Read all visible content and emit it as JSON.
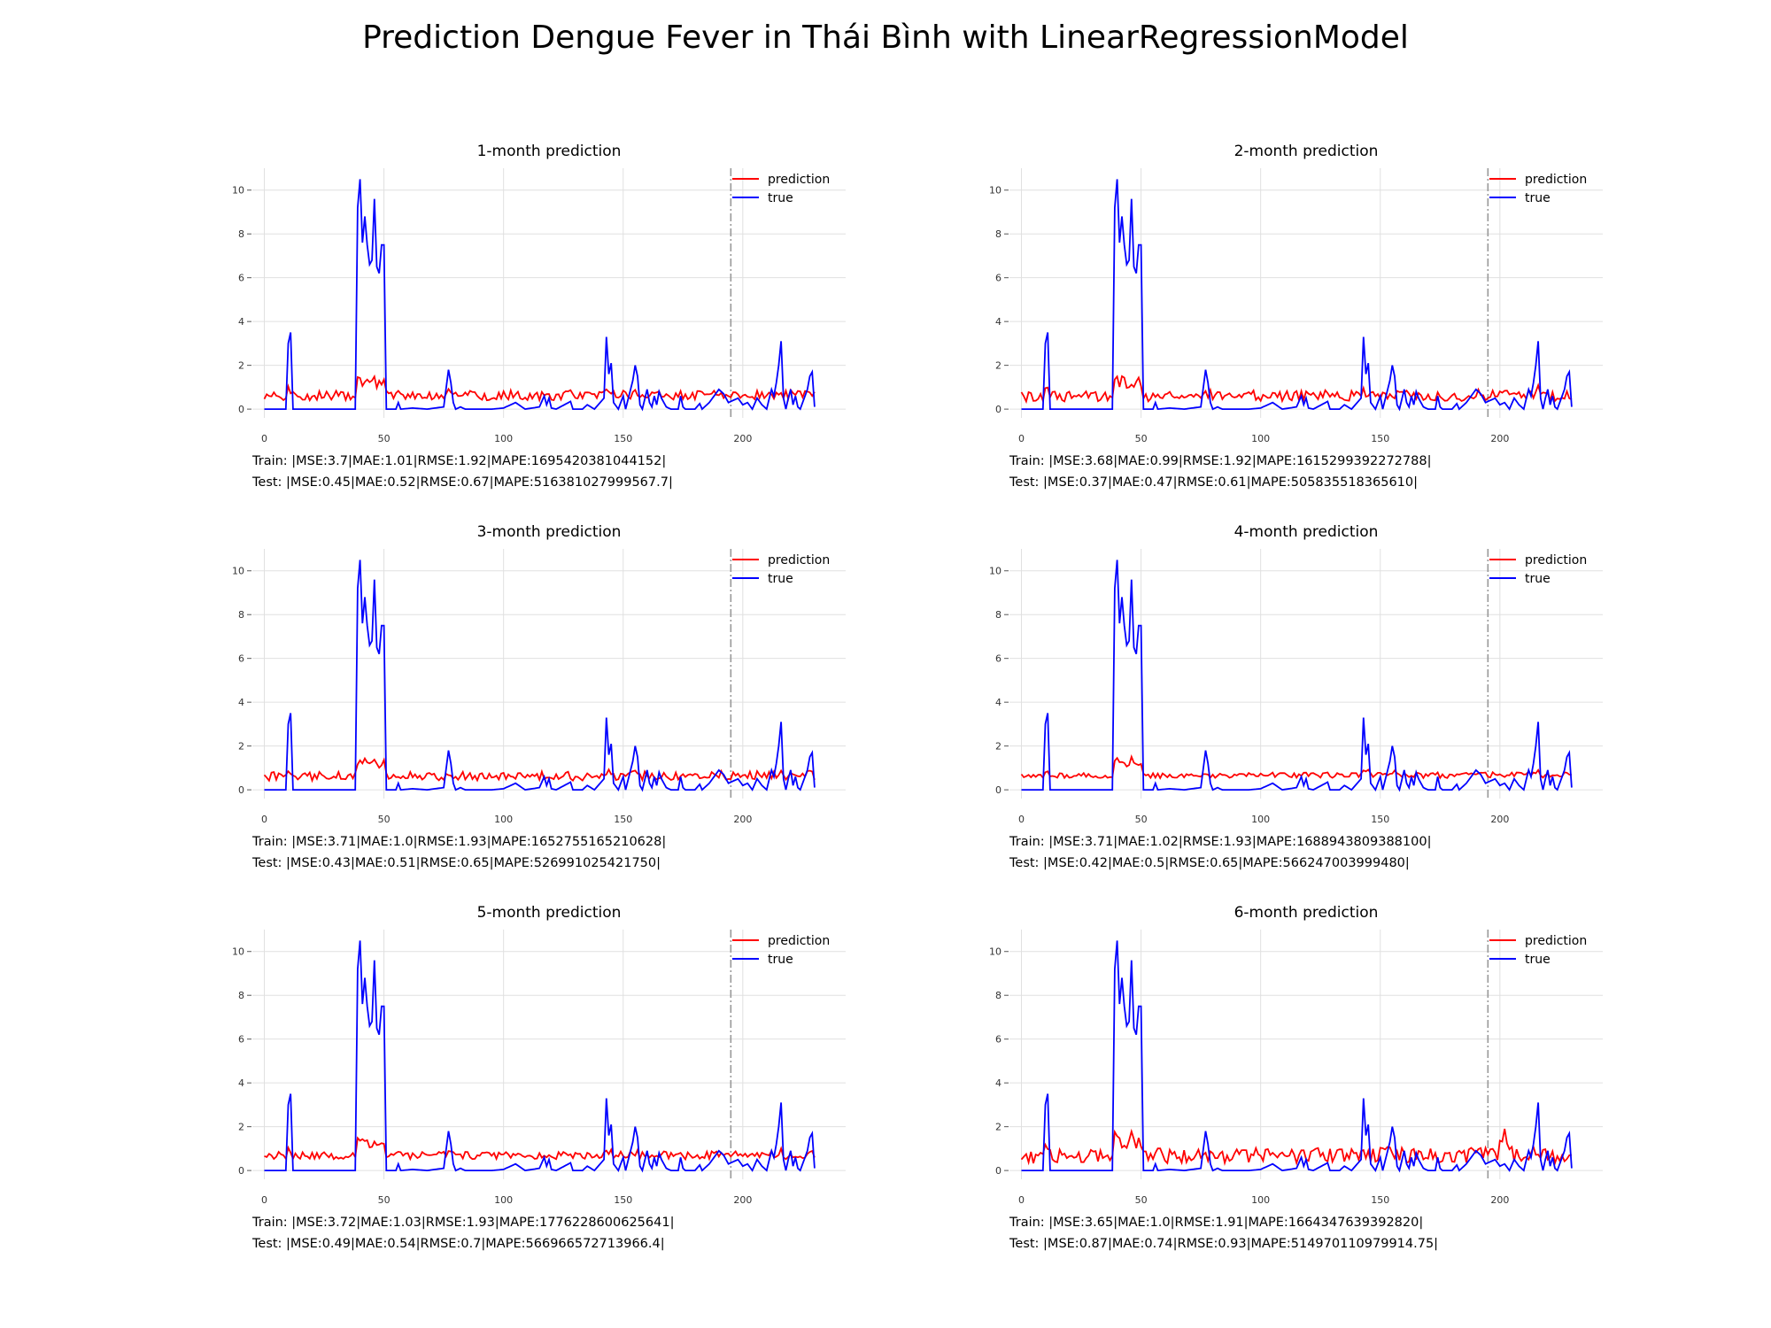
{
  "title": "Prediction Dengue Fever in Thái Bình with LinearRegressionModel",
  "legend": {
    "prediction": "prediction",
    "true": "true"
  },
  "colors": {
    "prediction": "#ff0000",
    "true": "#0000ff",
    "split": "#999999",
    "grid": "#e0e0e0"
  },
  "chart_data": [
    {
      "type": "line",
      "title": "1-month prediction",
      "xlim": [
        -5,
        243
      ],
      "ylim": [
        -0.4,
        11
      ],
      "xticks": [
        0,
        50,
        100,
        150,
        200
      ],
      "yticks": [
        0,
        2,
        4,
        6,
        8,
        10
      ],
      "split_x": 195,
      "legend_position": "top-right",
      "grid": true,
      "pred_level": 0.62,
      "pred_amp": 0.22,
      "pred_seed": 1,
      "series": [
        {
          "name": "prediction",
          "color": "#ff0000"
        },
        {
          "name": "true",
          "color": "#0000ff"
        }
      ],
      "train": "Train: |MSE:3.7|MAE:1.01|RMSE:1.92|MAPE:1695420381044152|",
      "test": "Test: |MSE:0.45|MAE:0.52|RMSE:0.67|MAPE:516381027999567.7|"
    },
    {
      "type": "line",
      "title": "2-month prediction",
      "xlim": [
        -5,
        243
      ],
      "ylim": [
        -0.4,
        11
      ],
      "xticks": [
        0,
        50,
        100,
        150,
        200
      ],
      "yticks": [
        0,
        2,
        4,
        6,
        8,
        10
      ],
      "split_x": 195,
      "legend_position": "top-right",
      "grid": true,
      "pred_level": 0.6,
      "pred_amp": 0.25,
      "pred_seed": 2,
      "series": [
        {
          "name": "prediction",
          "color": "#ff0000"
        },
        {
          "name": "true",
          "color": "#0000ff"
        }
      ],
      "train": "Train: |MSE:3.68|MAE:0.99|RMSE:1.92|MAPE:1615299392272788|",
      "test": "Test: |MSE:0.37|MAE:0.47|RMSE:0.61|MAPE:505835518365610|"
    },
    {
      "type": "line",
      "title": "3-month prediction",
      "xlim": [
        -5,
        243
      ],
      "ylim": [
        -0.4,
        11
      ],
      "xticks": [
        0,
        50,
        100,
        150,
        200
      ],
      "yticks": [
        0,
        2,
        4,
        6,
        8,
        10
      ],
      "split_x": 195,
      "legend_position": "top-right",
      "grid": true,
      "pred_level": 0.62,
      "pred_amp": 0.2,
      "pred_seed": 3,
      "series": [
        {
          "name": "prediction",
          "color": "#ff0000"
        },
        {
          "name": "true",
          "color": "#0000ff"
        }
      ],
      "train": "Train: |MSE:3.71|MAE:1.0|RMSE:1.93|MAPE:1652755165210628|",
      "test": "Test: |MSE:0.43|MAE:0.51|RMSE:0.65|MAPE:526991025421750|"
    },
    {
      "type": "line",
      "title": "4-month prediction",
      "xlim": [
        -5,
        243
      ],
      "ylim": [
        -0.4,
        11
      ],
      "xticks": [
        0,
        50,
        100,
        150,
        200
      ],
      "yticks": [
        0,
        2,
        4,
        6,
        8,
        10
      ],
      "split_x": 195,
      "legend_position": "top-right",
      "grid": true,
      "pred_level": 0.65,
      "pred_amp": 0.12,
      "pred_seed": 4,
      "series": [
        {
          "name": "prediction",
          "color": "#ff0000"
        },
        {
          "name": "true",
          "color": "#0000ff"
        }
      ],
      "train": "Train: |MSE:3.71|MAE:1.02|RMSE:1.93|MAPE:1688943809388100|",
      "test": "Test: |MSE:0.42|MAE:0.5|RMSE:0.65|MAPE:566247003999480|"
    },
    {
      "type": "line",
      "title": "5-month prediction",
      "xlim": [
        -5,
        243
      ],
      "ylim": [
        -0.4,
        11
      ],
      "xticks": [
        0,
        50,
        100,
        150,
        200
      ],
      "yticks": [
        0,
        2,
        4,
        6,
        8,
        10
      ],
      "split_x": 195,
      "legend_position": "top-right",
      "grid": true,
      "pred_level": 0.68,
      "pred_amp": 0.17,
      "pred_seed": 5,
      "series": [
        {
          "name": "prediction",
          "color": "#ff0000"
        },
        {
          "name": "true",
          "color": "#0000ff"
        }
      ],
      "train": "Train: |MSE:3.72|MAE:1.03|RMSE:1.93|MAPE:1776228600625641|",
      "test": "Test: |MSE:0.49|MAE:0.54|RMSE:0.7|MAPE:566966572713966.4|"
    },
    {
      "type": "line",
      "title": "6-month prediction",
      "xlim": [
        -5,
        243
      ],
      "ylim": [
        -0.4,
        11
      ],
      "xticks": [
        0,
        50,
        100,
        150,
        200
      ],
      "yticks": [
        0,
        2,
        4,
        6,
        8,
        10
      ],
      "split_x": 195,
      "legend_position": "top-right",
      "grid": true,
      "pred_level": 0.68,
      "pred_amp": 0.35,
      "pred_seed": 6,
      "series": [
        {
          "name": "prediction",
          "color": "#ff0000"
        },
        {
          "name": "true",
          "color": "#0000ff"
        }
      ],
      "train": "Train: |MSE:3.65|MAE:1.0|RMSE:1.91|MAPE:1664347639392820|",
      "test": "Test: |MSE:0.87|MAE:0.74|RMSE:0.93|MAPE:514970110979914.75|"
    }
  ],
  "true_series_keypoints": [
    [
      0,
      0
    ],
    [
      9,
      0
    ],
    [
      10,
      3.0
    ],
    [
      11,
      3.5
    ],
    [
      12,
      0
    ],
    [
      38,
      0
    ],
    [
      39,
      9.2
    ],
    [
      40,
      10.5
    ],
    [
      41,
      7.6
    ],
    [
      42,
      8.8
    ],
    [
      43,
      7.5
    ],
    [
      44,
      6.6
    ],
    [
      45,
      6.8
    ],
    [
      46,
      9.6
    ],
    [
      47,
      6.5
    ],
    [
      48,
      6.2
    ],
    [
      49,
      7.5
    ],
    [
      50,
      7.5
    ],
    [
      51,
      0
    ],
    [
      55,
      0
    ],
    [
      56,
      0.3
    ],
    [
      57,
      0
    ],
    [
      62,
      0.05
    ],
    [
      68,
      0
    ],
    [
      75,
      0.1
    ],
    [
      77,
      1.8
    ],
    [
      78,
      1.2
    ],
    [
      79,
      0.3
    ],
    [
      80,
      0
    ],
    [
      82,
      0.1
    ],
    [
      84,
      0
    ],
    [
      95,
      0
    ],
    [
      100,
      0.05
    ],
    [
      105,
      0.3
    ],
    [
      107,
      0.15
    ],
    [
      109,
      0
    ],
    [
      115,
      0.1
    ],
    [
      117,
      0.6
    ],
    [
      118,
      0.2
    ],
    [
      119,
      0.5
    ],
    [
      120,
      0.05
    ],
    [
      122,
      0
    ],
    [
      128,
      0.35
    ],
    [
      129,
      0
    ],
    [
      133,
      0
    ],
    [
      135,
      0.2
    ],
    [
      138,
      0
    ],
    [
      142,
      0.5
    ],
    [
      143,
      3.3
    ],
    [
      144,
      1.6
    ],
    [
      145,
      2.1
    ],
    [
      146,
      0.3
    ],
    [
      148,
      0
    ],
    [
      150,
      0.6
    ],
    [
      151,
      0
    ],
    [
      154,
      1.3
    ],
    [
      155,
      2.0
    ],
    [
      156,
      1.5
    ],
    [
      157,
      0.2
    ],
    [
      158,
      0
    ],
    [
      160,
      0.9
    ],
    [
      161,
      0.3
    ],
    [
      162,
      0.1
    ],
    [
      163,
      0.6
    ],
    [
      164,
      0.2
    ],
    [
      165,
      0.8
    ],
    [
      166,
      0.5
    ],
    [
      168,
      0.1
    ],
    [
      170,
      0
    ],
    [
      173,
      0
    ],
    [
      174,
      0.6
    ],
    [
      175,
      0.1
    ],
    [
      176,
      0
    ],
    [
      180,
      0
    ],
    [
      182,
      0.25
    ],
    [
      183,
      0
    ],
    [
      186,
      0.3
    ],
    [
      188,
      0.6
    ],
    [
      190,
      0.9
    ],
    [
      192,
      0.7
    ],
    [
      194,
      0.3
    ],
    [
      196,
      0.4
    ],
    [
      198,
      0.5
    ],
    [
      200,
      0.2
    ],
    [
      202,
      0.3
    ],
    [
      204,
      0
    ],
    [
      206,
      0.5
    ],
    [
      208,
      0.2
    ],
    [
      210,
      0
    ],
    [
      212,
      0.9
    ],
    [
      213,
      0.6
    ],
    [
      214,
      1.2
    ],
    [
      215,
      2.0
    ],
    [
      216,
      3.1
    ],
    [
      217,
      0.5
    ],
    [
      218,
      0
    ],
    [
      219,
      0.5
    ],
    [
      220,
      0.9
    ],
    [
      221,
      0.2
    ],
    [
      222,
      0.6
    ],
    [
      223,
      0.1
    ],
    [
      224,
      0
    ],
    [
      226,
      0.6
    ],
    [
      227,
      0.9
    ],
    [
      228,
      1.5
    ],
    [
      229,
      1.7
    ],
    [
      230,
      0.1
    ]
  ]
}
